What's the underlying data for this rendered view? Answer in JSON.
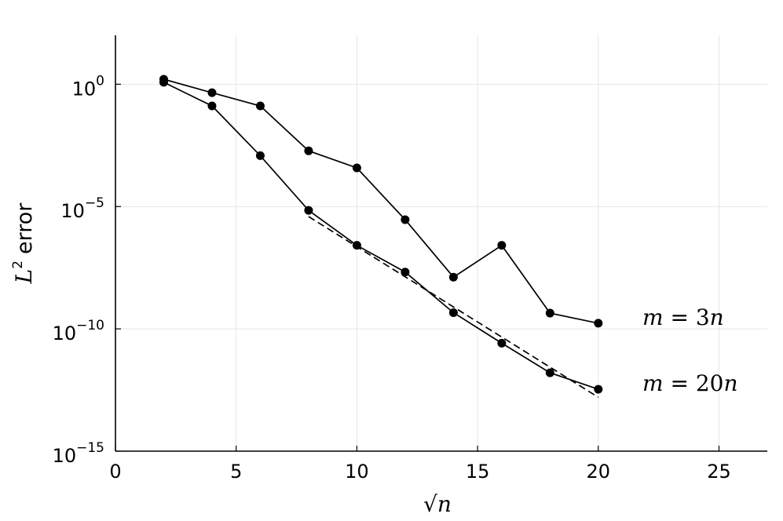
{
  "chart_data": {
    "type": "line",
    "xlim": [
      0,
      27
    ],
    "ylim_log10": [
      -15,
      2
    ],
    "y_scale": "log10",
    "grid": true,
    "x_ticks": [
      0,
      5,
      10,
      15,
      20,
      25
    ],
    "x_tick_labels": [
      "0",
      "5",
      "10",
      "15",
      "20",
      "25"
    ],
    "y_ticks": [
      0,
      -5,
      -10,
      -15
    ],
    "y_tick_labels": [
      {
        "base": "10",
        "exp": "0"
      },
      {
        "base": "10",
        "exp": "−5"
      },
      {
        "base": "10",
        "exp": "−10"
      },
      {
        "base": "10",
        "exp": "−15"
      }
    ],
    "xlabel": {
      "radical": "√",
      "var": "n"
    },
    "ylabel": {
      "var": "L",
      "sup": "2",
      "text": "error"
    },
    "series": [
      {
        "name": "m = 3n",
        "label_parts": {
          "lhs": "m",
          "eq": " = 3",
          "rhs": "n"
        },
        "x": [
          2,
          4,
          6,
          8,
          10,
          12,
          14,
          16,
          18,
          20
        ],
        "y": [
          1.6,
          0.45,
          0.13,
          0.0019,
          0.00038,
          2.9e-06,
          1.3e-08,
          2.6e-07,
          4.4e-10,
          1.7e-10
        ],
        "style": "solid",
        "marker": "circle",
        "color": "#000000"
      },
      {
        "name": "m = 20n",
        "label_parts": {
          "lhs": "m",
          "eq": " = 20",
          "rhs": "n"
        },
        "x": [
          2,
          4,
          6,
          8,
          10,
          12,
          14,
          16,
          18,
          20
        ],
        "y": [
          1.2,
          0.13,
          0.0012,
          7e-06,
          2.6e-07,
          2.1e-08,
          4.6e-10,
          2.6e-11,
          1.6e-12,
          3.4e-13
        ],
        "style": "solid",
        "marker": "circle",
        "color": "#000000"
      },
      {
        "name": "",
        "x": [
          8,
          20
        ],
        "y": [
          3.9e-06,
          1.6e-13
        ],
        "style": "dashed",
        "marker": "none",
        "color": "#000000"
      }
    ]
  }
}
